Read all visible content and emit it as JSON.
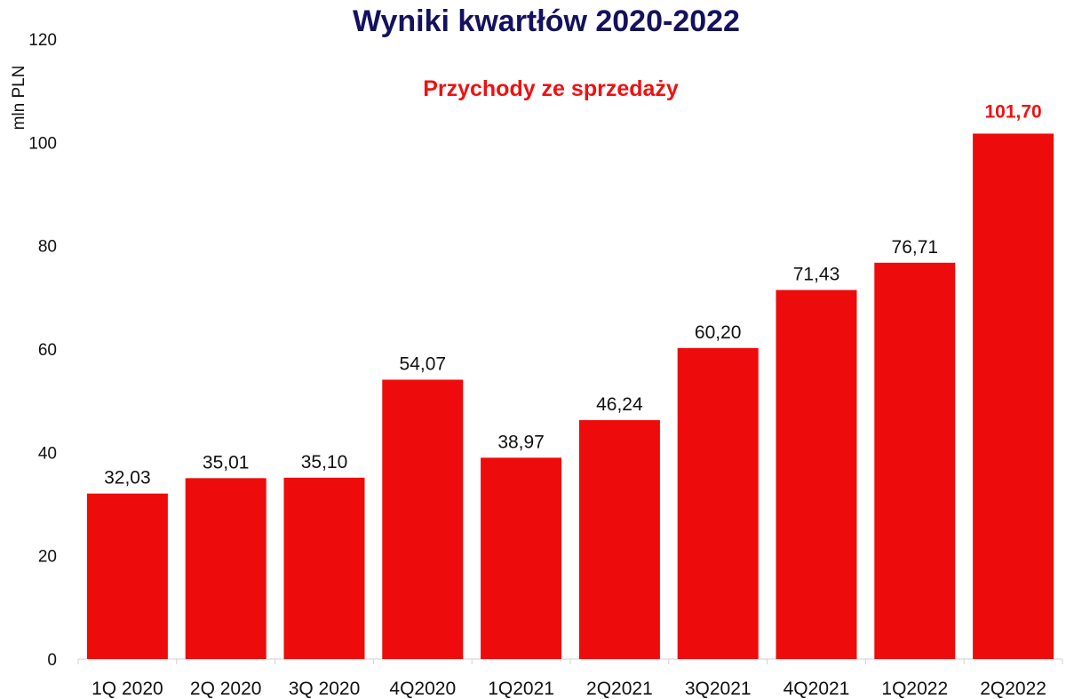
{
  "chart_data": {
    "type": "bar",
    "title": "Wyniki kwartłów 2020-2022",
    "subtitle": "Przychody ze sprzedaży",
    "ylabel": "mln  PLN",
    "xlabel": "",
    "ylim": [
      0,
      120
    ],
    "yticks": [
      "0",
      "20",
      "40",
      "60",
      "80",
      "100",
      "120"
    ],
    "categories": [
      "1Q 2020",
      "2Q 2020",
      "3Q 2020",
      "4Q2020",
      "1Q2021",
      "2Q2021",
      "3Q2021",
      "4Q2021",
      "1Q2022",
      "2Q2022"
    ],
    "values": [
      32.03,
      35.01,
      35.1,
      54.07,
      38.97,
      46.24,
      60.2,
      71.43,
      76.71,
      101.7
    ],
    "value_labels": [
      "32,03",
      "35,01",
      "35,10",
      "54,07",
      "38,97",
      "46,24",
      "60,20",
      "71,43",
      "76,71",
      "101,70"
    ],
    "highlighted_index": 9,
    "bar_color": "#ee0b0b",
    "title_color": "#14125e",
    "highlight_label_color": "#ee1111",
    "grid": false,
    "legend": "none"
  }
}
